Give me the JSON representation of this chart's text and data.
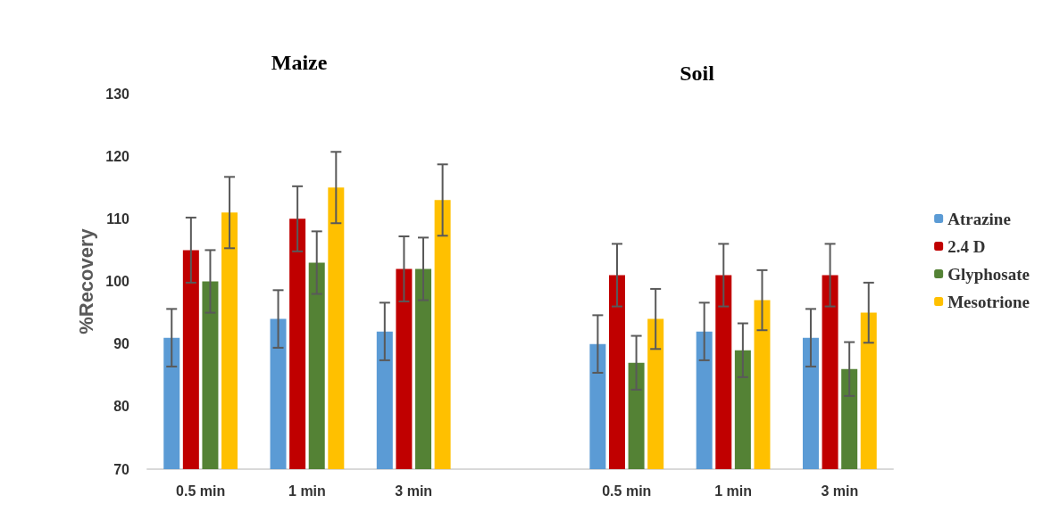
{
  "chart_data": {
    "type": "bar",
    "ylabel": "%Recovery",
    "annotations": [
      "Maize",
      "Soil"
    ],
    "categories": [
      "0.5 min",
      "1 min",
      "3 min",
      null,
      "0.5 min",
      "1 min",
      "3 min"
    ],
    "series": [
      {
        "name": "Atrazine",
        "color": "#5b9bd5",
        "values": [
          91,
          94,
          92,
          70,
          90,
          92,
          91
        ],
        "errors": [
          4.6,
          4.6,
          4.6,
          null,
          4.6,
          4.6,
          4.6
        ]
      },
      {
        "name": "2.4 D",
        "color": "#c00000",
        "values": [
          105,
          110,
          102,
          70,
          101,
          101,
          101
        ],
        "errors": [
          5.2,
          5.2,
          5.2,
          null,
          5,
          5,
          5
        ]
      },
      {
        "name": "Glyphosate",
        "color": "#548235",
        "values": [
          100,
          103,
          102,
          70,
          87,
          89,
          86
        ],
        "errors": [
          5,
          5,
          5,
          null,
          4.3,
          4.3,
          4.3
        ]
      },
      {
        "name": "Mesotrione",
        "color": "#ffc000",
        "values": [
          111,
          115,
          113,
          70,
          94,
          97,
          95
        ],
        "errors": [
          5.7,
          5.7,
          5.7,
          null,
          4.8,
          4.8,
          4.8
        ]
      }
    ],
    "ylim": [
      70,
      130
    ],
    "yticks": [
      70,
      80,
      90,
      100,
      110,
      120,
      130
    ],
    "grid": false,
    "legend": "right"
  }
}
